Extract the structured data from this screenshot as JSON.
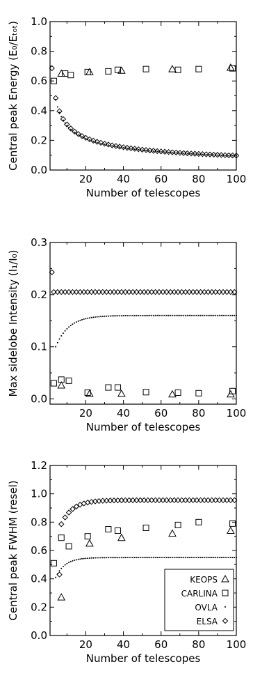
{
  "chart_data": [
    {
      "type": "scatter",
      "ylabel": "Central peak Energy (E₀/Eₜₒₜ)",
      "xlabel": "Number of telescopes",
      "xlim": [
        1,
        100
      ],
      "ylim": [
        0,
        1.0
      ],
      "xticks": [
        "20",
        "40",
        "60",
        "80",
        "100"
      ],
      "yticks": [
        "0.0",
        "0.2",
        "0.4",
        "0.6",
        "0.8",
        "1.0"
      ],
      "series": [
        {
          "name": "KEOPS",
          "marker": "triangle",
          "x": [
            7,
            22,
            39,
            66,
            97
          ],
          "y": [
            0.65,
            0.66,
            0.67,
            0.68,
            0.69
          ]
        },
        {
          "name": "CARLINA",
          "marker": "square",
          "x": [
            3,
            9,
            12,
            21,
            32,
            37,
            52,
            69,
            80,
            98
          ],
          "y": [
            0.6,
            0.65,
            0.64,
            0.66,
            0.665,
            0.675,
            0.68,
            0.675,
            0.68,
            0.685
          ]
        },
        {
          "name": "OVLA",
          "marker": "dot",
          "formula": "0.95/sqrt(N)",
          "n_min": 4,
          "n_max": 100
        },
        {
          "name": "ELSA",
          "marker": "diamond",
          "formula": "0.97/sqrt(N)",
          "n_min": 2,
          "n_max": 100
        }
      ]
    },
    {
      "type": "scatter",
      "ylabel": "Max sidelobe Intensity (I₁/I₀)",
      "xlabel": "Number of telescopes",
      "xlim": [
        1,
        100
      ],
      "ylim": [
        -0.01,
        0.3
      ],
      "xticks": [
        "20",
        "40",
        "60",
        "80",
        "100"
      ],
      "yticks": [
        "0.0",
        "0.1",
        "0.2",
        "0.3"
      ],
      "series": [
        {
          "name": "KEOPS",
          "marker": "triangle",
          "x": [
            7,
            22,
            39,
            66,
            97
          ],
          "y": [
            0.026,
            0.01,
            0.01,
            0.009,
            0.009
          ]
        },
        {
          "name": "CARLINA",
          "marker": "square",
          "x": [
            3,
            7,
            11,
            21,
            32,
            37,
            52,
            69,
            80,
            98
          ],
          "y": [
            0.03,
            0.037,
            0.035,
            0.012,
            0.022,
            0.022,
            0.013,
            0.012,
            0.011,
            0.015
          ]
        },
        {
          "name": "OVLA",
          "marker": "dot",
          "formula": "0.16-0.06*exp(-(N-4)/7)",
          "n_min": 4,
          "n_max": 100
        },
        {
          "name": "ELSA",
          "marker": "diamond",
          "formula": "0.205",
          "n_min": 2,
          "n_max": 100,
          "first_point": 0.243
        }
      ]
    },
    {
      "type": "scatter",
      "ylabel": "Central peak FWHM (resel)",
      "xlabel": "Number of telescopes",
      "xlim": [
        1,
        100
      ],
      "ylim": [
        0,
        1.2
      ],
      "xticks": [
        "20",
        "40",
        "60",
        "80",
        "100"
      ],
      "yticks": [
        "0.0",
        "0.2",
        "0.4",
        "0.6",
        "0.8",
        "1.0",
        "1.2"
      ],
      "series": [
        {
          "name": "KEOPS",
          "marker": "triangle",
          "x": [
            7,
            22,
            39,
            66,
            97
          ],
          "y": [
            0.27,
            0.65,
            0.69,
            0.72,
            0.74
          ]
        },
        {
          "name": "CARLINA",
          "marker": "square",
          "x": [
            3,
            7,
            11,
            21,
            32,
            37,
            52,
            69,
            80,
            98
          ],
          "y": [
            0.51,
            0.69,
            0.63,
            0.7,
            0.75,
            0.74,
            0.76,
            0.78,
            0.8,
            0.79
          ]
        },
        {
          "name": "OVLA",
          "marker": "dot",
          "formula": "0.55-0.14*exp(-(N-4)/5)",
          "n_min": 4,
          "n_max": 100
        },
        {
          "name": "ELSA",
          "marker": "diamond",
          "formula": "0.955-0.2*exp(-(N-6)/6)",
          "n_min": 6,
          "n_max": 100,
          "first_point": 0.43
        }
      ],
      "legend": {
        "placement": "bottom-right",
        "entries": [
          "KEOPS",
          "CARLINA",
          "OVLA",
          "ELSA"
        ]
      }
    }
  ]
}
